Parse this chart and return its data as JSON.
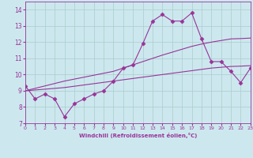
{
  "xlabel": "Windchill (Refroidissement éolien,°C)",
  "x": [
    0,
    1,
    2,
    3,
    4,
    5,
    6,
    7,
    8,
    9,
    10,
    11,
    12,
    13,
    14,
    15,
    16,
    17,
    18,
    19,
    20,
    21,
    22,
    23
  ],
  "y_data": [
    9.3,
    8.5,
    8.8,
    8.5,
    7.4,
    8.2,
    8.5,
    8.8,
    9.0,
    9.6,
    10.4,
    10.6,
    11.9,
    13.3,
    13.7,
    13.3,
    13.3,
    13.8,
    12.2,
    10.8,
    10.8,
    10.2,
    9.5,
    10.4
  ],
  "y_line1": [
    9.0,
    9.05,
    9.1,
    9.15,
    9.2,
    9.28,
    9.36,
    9.44,
    9.52,
    9.6,
    9.68,
    9.76,
    9.84,
    9.92,
    10.0,
    10.08,
    10.16,
    10.24,
    10.32,
    10.4,
    10.45,
    10.5,
    10.52,
    10.55
  ],
  "y_line2": [
    9.0,
    9.15,
    9.3,
    9.45,
    9.6,
    9.72,
    9.84,
    9.96,
    10.08,
    10.2,
    10.4,
    10.6,
    10.8,
    11.0,
    11.2,
    11.38,
    11.56,
    11.74,
    11.88,
    12.0,
    12.1,
    12.2,
    12.22,
    12.25
  ],
  "line_color": "#993399",
  "bg_color": "#cce8ee",
  "grid_color": "#aacccc",
  "xlim": [
    0,
    23
  ],
  "ylim": [
    7,
    14.5
  ],
  "xticks": [
    0,
    1,
    2,
    3,
    4,
    5,
    6,
    7,
    8,
    9,
    10,
    11,
    12,
    13,
    14,
    15,
    16,
    17,
    18,
    19,
    20,
    21,
    22,
    23
  ],
  "yticks": [
    7,
    8,
    9,
    10,
    11,
    12,
    13,
    14
  ],
  "marker": "D",
  "markersize": 2.5,
  "linewidth": 0.8
}
